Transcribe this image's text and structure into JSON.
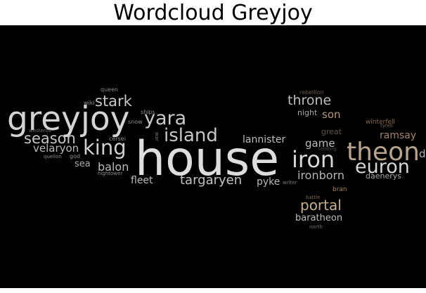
{
  "title": "Wordcloud Greyjoy",
  "words": [
    {
      "text": "house",
      "color": "#dddddd"
    },
    {
      "text": "greyjoy",
      "color": "#d3d3d3"
    },
    {
      "text": "theon",
      "color": "#b7a48c"
    },
    {
      "text": "iron",
      "color": "#d8d8d8"
    },
    {
      "text": "euron",
      "color": "#d6d6d6"
    },
    {
      "text": "yara",
      "color": "#c9c9c9"
    },
    {
      "text": "king",
      "color": "#cfcfcf"
    },
    {
      "text": "island",
      "color": "#c7c7c7"
    },
    {
      "text": "stark",
      "color": "#c8c8c8"
    },
    {
      "text": "season",
      "color": "#c6c6c6"
    },
    {
      "text": "throne",
      "color": "#bdbdbd"
    },
    {
      "text": "portal",
      "color": "#c7b08e"
    },
    {
      "text": "targaryen",
      "color": "#c3c3c3"
    },
    {
      "text": "ironborn",
      "color": "#b5b5b5"
    },
    {
      "text": "balon",
      "color": "#bcbcbc"
    },
    {
      "text": "velaryon",
      "color": "#b9b9b9"
    },
    {
      "text": "lannister",
      "color": "#bcbcbc"
    },
    {
      "text": "game",
      "color": "#bcbcbc"
    },
    {
      "text": "son",
      "color": "#b49a7c"
    },
    {
      "text": "ramsay",
      "color": "#a3866a"
    },
    {
      "text": "fleet",
      "color": "#b9b9b9"
    },
    {
      "text": "pyke",
      "color": "#b6b6b6"
    },
    {
      "text": "baratheon",
      "color": "#bdbdbd"
    },
    {
      "text": "sea",
      "color": "#a8a8a8"
    },
    {
      "text": "night",
      "color": "#a9a9a9"
    },
    {
      "text": "daenerys",
      "color": "#a5a5a5"
    },
    {
      "text": "great",
      "color": "#5f554a"
    },
    {
      "text": "winterfell",
      "color": "#8a6a4a"
    },
    {
      "text": "bran",
      "color": "#a8814c"
    },
    {
      "text": "queen",
      "color": "#8a8a8a"
    },
    {
      "text": "rebellion",
      "color": "#6a5a48"
    },
    {
      "text": "wiki",
      "color": "#8f8f8f"
    },
    {
      "text": "ships",
      "color": "#8f8f8f"
    },
    {
      "text": "snow",
      "color": "#8f8f8f"
    },
    {
      "text": "westeros",
      "color": "#6f6f6f"
    },
    {
      "text": "cersei",
      "color": "#8f8f8f"
    },
    {
      "text": "quellon",
      "color": "#8a8a8a"
    },
    {
      "text": "god",
      "color": "#8f8f8f"
    },
    {
      "text": "hightower",
      "color": "#8f8f8f"
    },
    {
      "text": "war",
      "color": "#7a7a7a"
    },
    {
      "text": "landing",
      "color": "#4a4a4a"
    },
    {
      "text": "writer",
      "color": "#7a7a7a"
    },
    {
      "text": "battle",
      "color": "#7a6248"
    },
    {
      "text": "north",
      "color": "#6f6f6f"
    },
    {
      "text": "tyrell",
      "color": "#7a6248"
    },
    {
      "text": "d",
      "color": "#b0b0b0"
    }
  ]
}
